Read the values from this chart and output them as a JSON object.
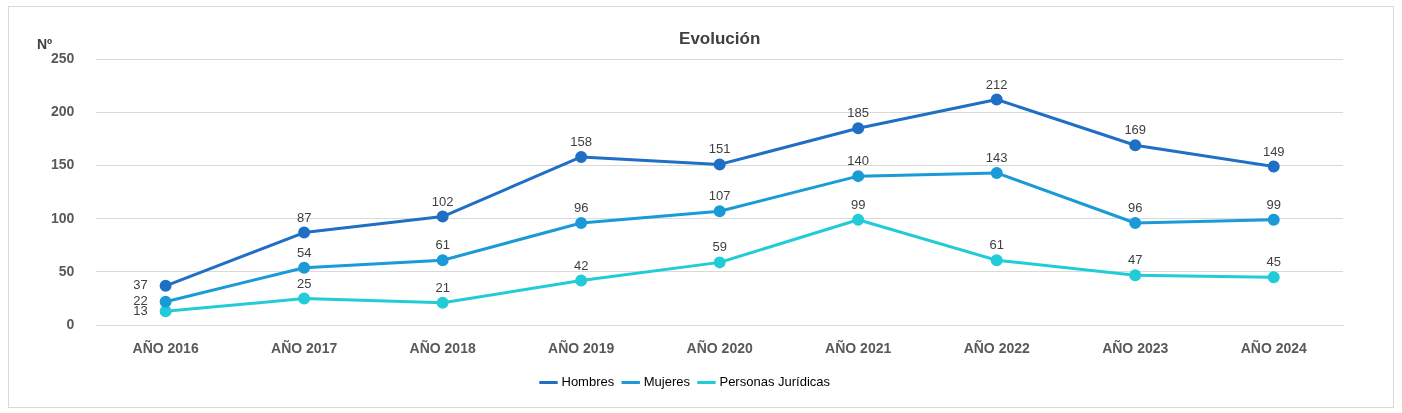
{
  "chart_data": {
    "type": "line",
    "title": "Evolución",
    "ylabel": "Nº",
    "categories": [
      "AÑO 2016",
      "AÑO 2017",
      "AÑO 2018",
      "AÑO 2019",
      "AÑO 2020",
      "AÑO 2021",
      "AÑO 2022",
      "AÑO 2023",
      "AÑO 2024"
    ],
    "series": [
      {
        "name": "Hombres",
        "color": "#1f6fc5",
        "values": [
          37,
          87,
          102,
          158,
          151,
          185,
          212,
          169,
          149
        ]
      },
      {
        "name": "Mujeres",
        "color": "#1a9ad6",
        "values": [
          22,
          54,
          61,
          96,
          107,
          140,
          143,
          96,
          99
        ]
      },
      {
        "name": "Personas Jurídicas",
        "color": "#22ccd6",
        "values": [
          13,
          25,
          21,
          42,
          59,
          99,
          61,
          47,
          45
        ]
      }
    ],
    "ylim": [
      0,
      250
    ],
    "yticks": [
      0,
      50,
      100,
      150,
      200,
      250
    ],
    "grid": "y",
    "legend": "bottom",
    "marker": "circle",
    "line_style": "solid",
    "data_labels": true
  }
}
